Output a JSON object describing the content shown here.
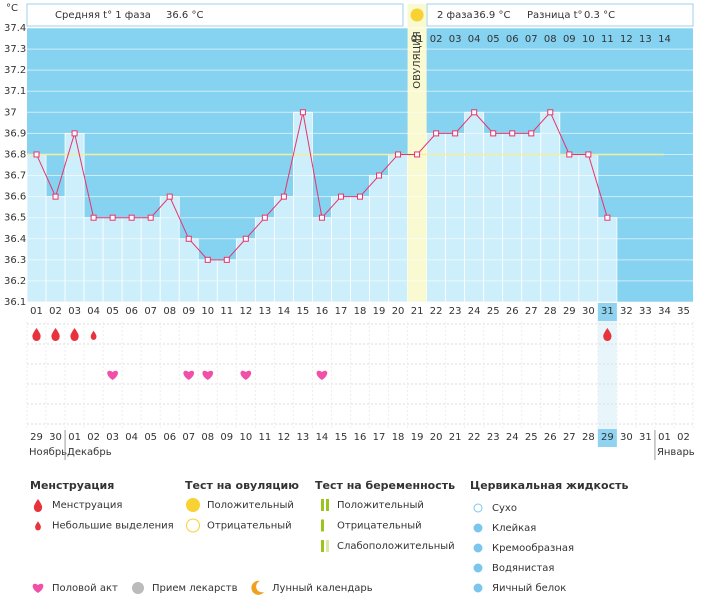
{
  "chart_data": {
    "type": "line",
    "unit_label": "°С",
    "header": {
      "phase1": "Средняя t° 1 фаза",
      "phase1_value": "36.6 °C",
      "phase2": "2 фаза",
      "phase2_value": "36.9 °C",
      "diff": "Разница t°",
      "diff_value": "0.3 °C"
    },
    "ovulation_label": "ОВУЛЯЦИЯ",
    "ovulation_index": 20,
    "categories": [
      "01",
      "02",
      "03",
      "04",
      "05",
      "06",
      "07",
      "08",
      "09",
      "10",
      "11",
      "12",
      "13",
      "14",
      "15",
      "16",
      "17",
      "18",
      "19",
      "20",
      "21",
      "22",
      "23",
      "24",
      "25",
      "26",
      "27",
      "28",
      "29",
      "30",
      "31",
      "32",
      "33",
      "34",
      "35"
    ],
    "values": [
      36.8,
      36.6,
      36.9,
      36.5,
      36.5,
      36.5,
      36.5,
      36.6,
      36.4,
      36.3,
      36.3,
      36.4,
      36.5,
      36.6,
      37.0,
      36.5,
      36.6,
      36.6,
      36.7,
      36.8,
      36.8,
      36.9,
      36.9,
      37.0,
      36.9,
      36.9,
      36.9,
      37.0,
      36.8,
      36.8,
      36.5,
      null,
      null,
      null,
      null
    ],
    "line_color": "#e8336b",
    "coverline": 36.8,
    "phase2_days": [
      "01",
      "02",
      "03",
      "04",
      "05",
      "06",
      "07",
      "08",
      "09",
      "10",
      "11",
      "12",
      "13",
      "14"
    ],
    "current_index": 30,
    "ylim": [
      36.1,
      37.4
    ],
    "yticks": [
      36.1,
      36.2,
      36.3,
      36.4,
      36.5,
      36.6,
      36.7,
      36.8,
      36.9,
      37,
      37.1,
      37.2,
      37.3,
      37.4
    ],
    "grid": true,
    "menstruation_days": [
      1,
      2,
      3,
      31
    ],
    "spotting_days": [
      4
    ],
    "intercourse_days": [
      5,
      9,
      10,
      12,
      16
    ],
    "dates": [
      {
        "day": "29",
        "weekend": true
      },
      {
        "day": "30",
        "weekend": false
      },
      {
        "day": "01",
        "weekend": false
      },
      {
        "day": "02",
        "weekend": false
      },
      {
        "day": "03",
        "weekend": false
      },
      {
        "day": "04",
        "weekend": false
      },
      {
        "day": "05",
        "weekend": true
      },
      {
        "day": "06",
        "weekend": true
      },
      {
        "day": "07",
        "weekend": false
      },
      {
        "day": "08",
        "weekend": false
      },
      {
        "day": "09",
        "weekend": false
      },
      {
        "day": "10",
        "weekend": false
      },
      {
        "day": "11",
        "weekend": false
      },
      {
        "day": "12",
        "weekend": true
      },
      {
        "day": "13",
        "weekend": true
      },
      {
        "day": "14",
        "weekend": false
      },
      {
        "day": "15",
        "weekend": false
      },
      {
        "day": "16",
        "weekend": false
      },
      {
        "day": "17",
        "weekend": false
      },
      {
        "day": "18",
        "weekend": false
      },
      {
        "day": "19",
        "weekend": true
      },
      {
        "day": "20",
        "weekend": true
      },
      {
        "day": "21",
        "weekend": false
      },
      {
        "day": "22",
        "weekend": false
      },
      {
        "day": "23",
        "weekend": false
      },
      {
        "day": "24",
        "weekend": false
      },
      {
        "day": "25",
        "weekend": false
      },
      {
        "day": "26",
        "weekend": true
      },
      {
        "day": "27",
        "weekend": true
      },
      {
        "day": "28",
        "weekend": false
      },
      {
        "day": "29",
        "weekend": false
      },
      {
        "day": "30",
        "weekend": false
      },
      {
        "day": "31",
        "weekend": false
      },
      {
        "day": "01",
        "weekend": false
      },
      {
        "day": "02",
        "weekend": true
      }
    ],
    "months": [
      {
        "label": "Ноябрь",
        "index": 0
      },
      {
        "label": "Декабрь",
        "index": 2
      },
      {
        "label": "Январь",
        "index": 33
      }
    ],
    "legend": [
      {
        "title": "Менструация",
        "items": [
          "Менструация",
          "Небольшие выделения"
        ]
      },
      {
        "title": "Тест на овуляцию",
        "items": [
          "Положительный",
          "Отрицательный"
        ]
      },
      {
        "title": "Тест на беременность",
        "items": [
          "Положительный",
          "Отрицательный",
          "Слабоположительный"
        ]
      },
      {
        "title": "Цервикальная жидкость",
        "items": [
          "Сухо",
          "Клейкая",
          "Кремообразная",
          "Водянистая",
          "Яичный белок"
        ]
      }
    ],
    "extra_legend": [
      "Половой акт",
      "Прием лекарств",
      "Лунный календарь"
    ]
  }
}
